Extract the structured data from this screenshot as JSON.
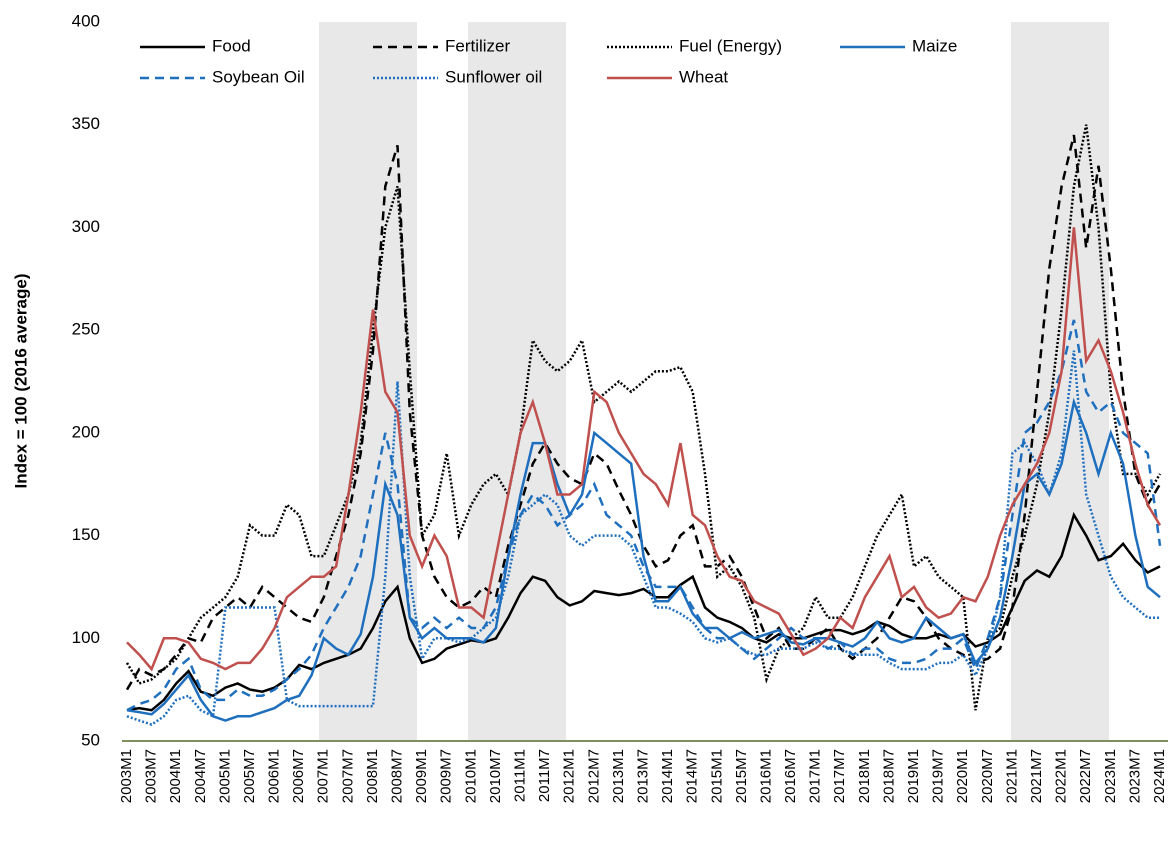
{
  "chart_data": {
    "type": "line",
    "y_label": "Index = 100 (2016 average)",
    "ylim": [
      50,
      400
    ],
    "yticks": [
      50,
      100,
      150,
      200,
      250,
      300,
      350,
      400
    ],
    "categories": [
      "2003M1",
      null,
      "2003M7",
      null,
      "2004M1",
      null,
      "2004M7",
      null,
      "2005M1",
      null,
      "2005M7",
      null,
      "2006M1",
      null,
      "2006M7",
      null,
      "2007M1",
      null,
      "2007M7",
      null,
      "2008M1",
      null,
      "2008M7",
      null,
      "2009M1",
      null,
      "2009M7",
      null,
      "2010M1",
      null,
      "2010M7",
      null,
      "2011M1",
      null,
      "2011M7",
      null,
      "2012M1",
      null,
      "2012M7",
      null,
      "2013M1",
      null,
      "2013M7",
      null,
      "2014M1",
      null,
      "2014M7",
      null,
      "2015M1",
      null,
      "2015M7",
      null,
      "2016M1",
      null,
      "2016M7",
      null,
      "2017M1",
      null,
      "2017M7",
      null,
      "2018M1",
      null,
      "2018M7",
      null,
      "2019M1",
      null,
      "2019M7",
      null,
      "2020M1",
      null,
      "2020M7",
      null,
      "2021M1",
      null,
      "2021M7",
      null,
      "2022M1",
      null,
      "2022M7",
      null,
      "2023M1",
      null,
      "2023M7",
      null,
      "2024M1"
    ],
    "series": [
      {
        "name": "Food",
        "color": "#000000",
        "dash": "solid",
        "values": [
          65,
          66,
          65,
          70,
          78,
          84,
          74,
          72,
          76,
          78,
          75,
          74,
          76,
          80,
          87,
          85,
          88,
          90,
          92,
          95,
          105,
          118,
          125,
          100,
          88,
          90,
          95,
          97,
          99,
          98,
          100,
          110,
          122,
          130,
          128,
          120,
          116,
          118,
          123,
          122,
          121,
          122,
          124,
          120,
          120,
          126,
          130,
          115,
          110,
          108,
          105,
          100,
          98,
          102,
          100,
          100,
          102,
          104,
          104,
          102,
          104,
          108,
          106,
          102,
          100,
          100,
          102,
          100,
          102,
          96,
          98,
          102,
          115,
          128,
          133,
          130,
          140,
          160,
          150,
          138,
          140,
          146,
          138,
          132,
          135
        ]
      },
      {
        "name": "Fertilizer",
        "color": "#000000",
        "dash": "dashed",
        "values": [
          75,
          85,
          82,
          85,
          92,
          100,
          98,
          110,
          115,
          120,
          115,
          125,
          120,
          115,
          110,
          108,
          120,
          140,
          160,
          190,
          240,
          320,
          340,
          210,
          150,
          130,
          120,
          115,
          118,
          125,
          120,
          145,
          165,
          185,
          195,
          185,
          178,
          175,
          190,
          185,
          172,
          160,
          145,
          135,
          138,
          150,
          155,
          135,
          135,
          140,
          130,
          115,
          100,
          105,
          95,
          95,
          100,
          105,
          95,
          90,
          95,
          100,
          110,
          120,
          118,
          110,
          100,
          95,
          92,
          88,
          90,
          95,
          115,
          160,
          220,
          280,
          320,
          345,
          290,
          330,
          280,
          220,
          180,
          165,
          175
        ]
      },
      {
        "name": "Fuel (Energy)",
        "color": "#000000",
        "dash": "dotted",
        "values": [
          88,
          78,
          80,
          85,
          90,
          100,
          110,
          115,
          120,
          130,
          155,
          150,
          150,
          165,
          160,
          140,
          140,
          155,
          170,
          195,
          250,
          300,
          320,
          230,
          150,
          160,
          190,
          150,
          165,
          175,
          180,
          170,
          200,
          245,
          235,
          230,
          235,
          245,
          215,
          220,
          225,
          220,
          225,
          230,
          230,
          232,
          220,
          180,
          130,
          135,
          125,
          110,
          80,
          95,
          100,
          105,
          120,
          110,
          110,
          120,
          135,
          150,
          160,
          170,
          135,
          140,
          130,
          125,
          120,
          65,
          100,
          105,
          130,
          150,
          175,
          210,
          260,
          320,
          350,
          300,
          220,
          180,
          180,
          170,
          180
        ]
      },
      {
        "name": "Maize",
        "color": "#1f6fbf",
        "dash": "solid",
        "values": [
          65,
          64,
          63,
          68,
          75,
          82,
          70,
          62,
          60,
          62,
          62,
          64,
          66,
          70,
          72,
          82,
          100,
          95,
          92,
          102,
          130,
          175,
          160,
          110,
          100,
          105,
          100,
          100,
          100,
          98,
          105,
          140,
          170,
          195,
          195,
          175,
          160,
          170,
          200,
          195,
          190,
          185,
          140,
          118,
          118,
          125,
          112,
          105,
          105,
          100,
          103,
          100,
          102,
          104,
          98,
          97,
          100,
          100,
          98,
          96,
          100,
          108,
          100,
          98,
          100,
          110,
          105,
          100,
          102,
          88,
          95,
          110,
          140,
          175,
          180,
          170,
          185,
          215,
          200,
          180,
          200,
          185,
          150,
          125,
          120
        ]
      },
      {
        "name": "Soybean Oil",
        "color": "#1f6fbf",
        "dash": "dashed",
        "values": [
          65,
          68,
          70,
          75,
          85,
          90,
          75,
          70,
          70,
          75,
          72,
          72,
          75,
          80,
          85,
          92,
          105,
          115,
          125,
          140,
          170,
          200,
          175,
          110,
          105,
          110,
          105,
          110,
          105,
          105,
          115,
          140,
          160,
          170,
          165,
          155,
          160,
          165,
          175,
          160,
          155,
          150,
          135,
          125,
          125,
          125,
          115,
          105,
          100,
          100,
          95,
          90,
          95,
          100,
          105,
          100,
          100,
          95,
          98,
          92,
          95,
          95,
          90,
          88,
          88,
          90,
          95,
          95,
          100,
          85,
          100,
          120,
          160,
          200,
          205,
          215,
          230,
          255,
          220,
          210,
          215,
          200,
          195,
          190,
          145
        ]
      },
      {
        "name": "Sunflower oil",
        "color": "#1f6fbf",
        "dash": "dotted",
        "values": [
          62,
          60,
          58,
          62,
          70,
          72,
          65,
          62,
          115,
          115,
          115,
          115,
          115,
          70,
          67,
          67,
          67,
          67,
          67,
          67,
          67,
          130,
          225,
          130,
          90,
          100,
          100,
          98,
          100,
          105,
          110,
          130,
          160,
          165,
          170,
          165,
          150,
          145,
          150,
          150,
          150,
          145,
          130,
          115,
          115,
          112,
          108,
          100,
          98,
          100,
          95,
          92,
          92,
          95,
          95,
          95,
          98,
          95,
          95,
          92,
          92,
          92,
          88,
          85,
          85,
          85,
          88,
          88,
          92,
          82,
          95,
          120,
          190,
          195,
          185,
          170,
          190,
          240,
          170,
          150,
          130,
          120,
          115,
          110,
          110
        ]
      },
      {
        "name": "Wheat",
        "color": "#c0504d",
        "dash": "solid",
        "values": [
          98,
          92,
          85,
          100,
          100,
          98,
          90,
          88,
          85,
          88,
          88,
          95,
          105,
          120,
          125,
          130,
          130,
          135,
          170,
          210,
          260,
          220,
          210,
          150,
          135,
          150,
          140,
          115,
          115,
          110,
          140,
          170,
          200,
          215,
          195,
          170,
          170,
          175,
          220,
          215,
          200,
          190,
          180,
          175,
          165,
          195,
          160,
          155,
          140,
          130,
          128,
          118,
          115,
          112,
          102,
          92,
          95,
          100,
          110,
          105,
          120,
          130,
          140,
          120,
          125,
          115,
          110,
          112,
          120,
          118,
          130,
          150,
          165,
          175,
          185,
          200,
          230,
          300,
          235,
          245,
          230,
          210,
          185,
          165,
          155
        ]
      }
    ]
  }
}
